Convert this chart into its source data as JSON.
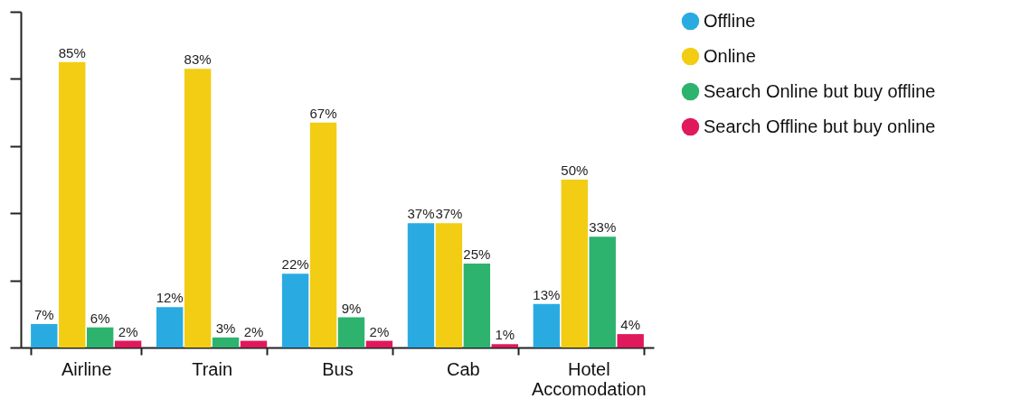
{
  "chart_data": {
    "type": "bar",
    "categories": [
      "Airline",
      "Train",
      "Bus",
      "Cab",
      "Hotel Accomodation"
    ],
    "series": [
      {
        "name": "Offline",
        "color": "#29abe2",
        "values": [
          7,
          12,
          22,
          37,
          13
        ],
        "value_labels": [
          "7%",
          "12%",
          "22%",
          "37%",
          "13%"
        ]
      },
      {
        "name": "Online",
        "color": "#f2cd14",
        "values": [
          85,
          83,
          67,
          37,
          50
        ],
        "value_labels": [
          "85%",
          "83%",
          "67%",
          "37%",
          "50%"
        ]
      },
      {
        "name": "Search Online but buy offline",
        "color": "#2db36e",
        "values": [
          6,
          3,
          9,
          25,
          33
        ],
        "value_labels": [
          "6%",
          "3%",
          "9%",
          "25%",
          "33%"
        ]
      },
      {
        "name": "Search Offline but buy online",
        "color": "#e0185c",
        "values": [
          2,
          2,
          2,
          1,
          4
        ],
        "value_labels": [
          "2%",
          "2%",
          "2%",
          "1%",
          "4%"
        ]
      }
    ],
    "ylim": [
      0,
      100
    ],
    "yticks": [
      {
        "value": 0,
        "label": null
      },
      {
        "value": 20,
        "label": null
      },
      {
        "value": 40,
        "label": null
      },
      {
        "value": 60,
        "label": null
      },
      {
        "value": 80,
        "label": null
      },
      {
        "value": 100,
        "label": null
      }
    ],
    "tick_labels": "x",
    "legend": "right",
    "grid": false
  }
}
